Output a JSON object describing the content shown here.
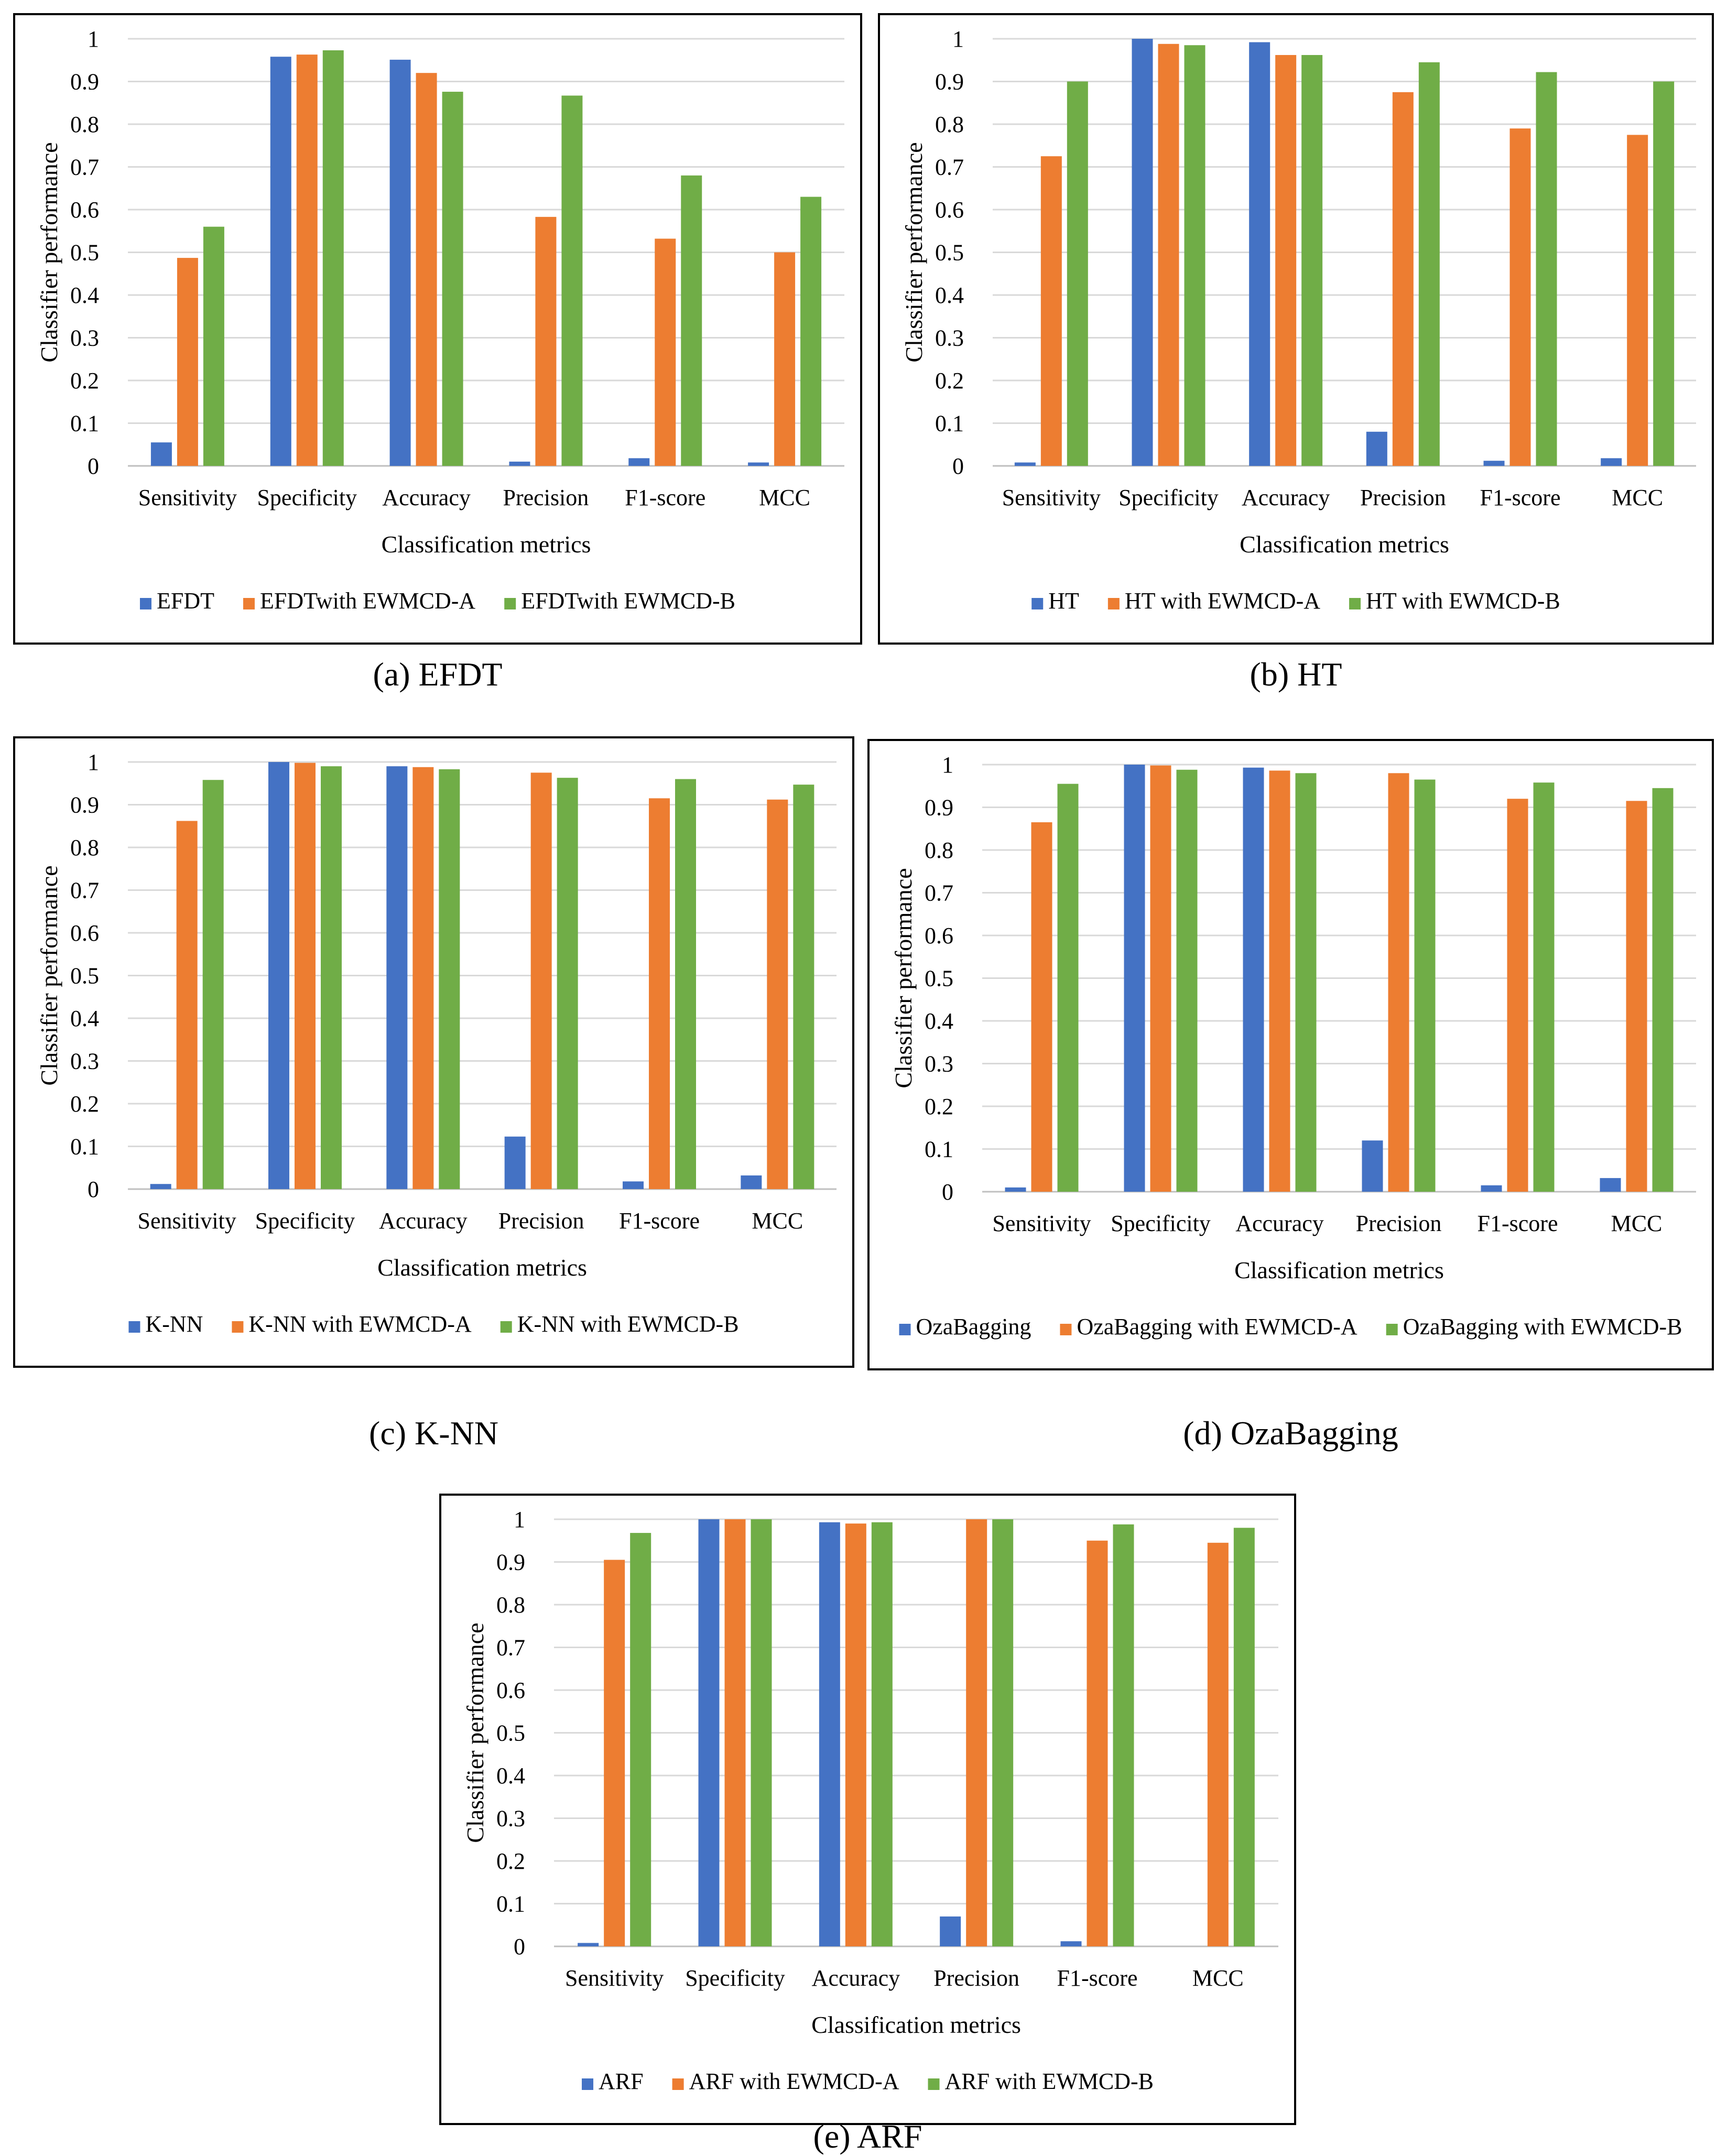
{
  "colors": {
    "s0": "#4472C4",
    "s1": "#ED7D31",
    "s2": "#70AD47",
    "grid": "#D9D9D9",
    "axis": "#BFBFBF"
  },
  "chart_data": [
    {
      "type": "bar",
      "caption": "(a) EFDT",
      "xlabel": "Classification metrics",
      "ylabel": "Classifier performance",
      "ylim": [
        0,
        1
      ],
      "yticks": [
        "0",
        "0.1",
        "0.2",
        "0.3",
        "0.4",
        "0.5",
        "0.6",
        "0.7",
        "0.8",
        "0.9",
        "1"
      ],
      "categories": [
        "Sensitivity",
        "Specificity",
        "Accuracy",
        "Precision",
        "F1-score",
        "MCC"
      ],
      "series": [
        {
          "name": "EFDT",
          "values": [
            0.055,
            0.958,
            0.951,
            0.01,
            0.018,
            0.008
          ]
        },
        {
          "name": "EFDTwith EWMCD-A",
          "values": [
            0.487,
            0.963,
            0.92,
            0.583,
            0.532,
            0.5
          ]
        },
        {
          "name": "EFDTwith EWMCD-B",
          "values": [
            0.56,
            0.973,
            0.876,
            0.867,
            0.68,
            0.63
          ]
        }
      ]
    },
    {
      "type": "bar",
      "caption": "(b) HT",
      "xlabel": "Classification metrics",
      "ylabel": "Classifier performance",
      "ylim": [
        0,
        1
      ],
      "yticks": [
        "0",
        "0.1",
        "0.2",
        "0.3",
        "0.4",
        "0.5",
        "0.6",
        "0.7",
        "0.8",
        "0.9",
        "1"
      ],
      "categories": [
        "Sensitivity",
        "Specificity",
        "Accuracy",
        "Precision",
        "F1-score",
        "MCC"
      ],
      "series": [
        {
          "name": "HT",
          "values": [
            0.008,
            1.0,
            0.992,
            0.08,
            0.012,
            0.018
          ]
        },
        {
          "name": "HT with EWMCD-A",
          "values": [
            0.725,
            0.988,
            0.962,
            0.875,
            0.79,
            0.775
          ]
        },
        {
          "name": "HT with EWMCD-B",
          "values": [
            0.9,
            0.985,
            0.962,
            0.945,
            0.922,
            0.9
          ]
        }
      ]
    },
    {
      "type": "bar",
      "caption": "(c) K-NN",
      "xlabel": "Classification metrics",
      "ylabel": "Classifier performance",
      "ylim": [
        0,
        1
      ],
      "yticks": [
        "0",
        "0.1",
        "0.2",
        "0.3",
        "0.4",
        "0.5",
        "0.6",
        "0.7",
        "0.8",
        "0.9",
        "1"
      ],
      "categories": [
        "Sensitivity",
        "Specificity",
        "Accuracy",
        "Precision",
        "F1-score",
        "MCC"
      ],
      "series": [
        {
          "name": "K-NN",
          "values": [
            0.012,
            1.0,
            0.99,
            0.123,
            0.018,
            0.032
          ]
        },
        {
          "name": "K-NN with EWMCD-A",
          "values": [
            0.862,
            0.998,
            0.988,
            0.975,
            0.915,
            0.912
          ]
        },
        {
          "name": "K-NN with EWMCD-B",
          "values": [
            0.958,
            0.99,
            0.983,
            0.963,
            0.96,
            0.947
          ]
        }
      ]
    },
    {
      "type": "bar",
      "caption": "(d) OzaBagging",
      "xlabel": "Classification metrics",
      "ylabel": "Classifier performance",
      "ylim": [
        0,
        1
      ],
      "yticks": [
        "0",
        "0.1",
        "0.2",
        "0.3",
        "0.4",
        "0.5",
        "0.6",
        "0.7",
        "0.8",
        "0.9",
        "1"
      ],
      "categories": [
        "Sensitivity",
        "Specificity",
        "Accuracy",
        "Precision",
        "F1-score",
        "MCC"
      ],
      "series": [
        {
          "name": "OzaBagging",
          "values": [
            0.01,
            1.0,
            0.993,
            0.12,
            0.015,
            0.032
          ]
        },
        {
          "name": "OzaBagging with EWMCD-A",
          "values": [
            0.865,
            0.998,
            0.986,
            0.98,
            0.92,
            0.915
          ]
        },
        {
          "name": "OzaBagging with EWMCD-B",
          "values": [
            0.955,
            0.988,
            0.98,
            0.965,
            0.958,
            0.945
          ]
        }
      ]
    },
    {
      "type": "bar",
      "caption": "(e) ARF",
      "xlabel": "Classification metrics",
      "ylabel": "Classifier performance",
      "ylim": [
        0,
        1
      ],
      "yticks": [
        "0",
        "0.1",
        "0.2",
        "0.3",
        "0.4",
        "0.5",
        "0.6",
        "0.7",
        "0.8",
        "0.9",
        "1"
      ],
      "categories": [
        "Sensitivity",
        "Specificity",
        "Accuracy",
        "Precision",
        "F1-score",
        "MCC"
      ],
      "series": [
        {
          "name": "ARF",
          "values": [
            0.008,
            1.0,
            0.993,
            0.07,
            0.012,
            0.0
          ]
        },
        {
          "name": "ARF with EWMCD-A",
          "values": [
            0.905,
            1.0,
            0.99,
            1.0,
            0.95,
            0.945
          ]
        },
        {
          "name": "ARF with EWMCD-B",
          "values": [
            0.968,
            1.0,
            0.993,
            1.0,
            0.988,
            0.98
          ]
        }
      ]
    }
  ]
}
